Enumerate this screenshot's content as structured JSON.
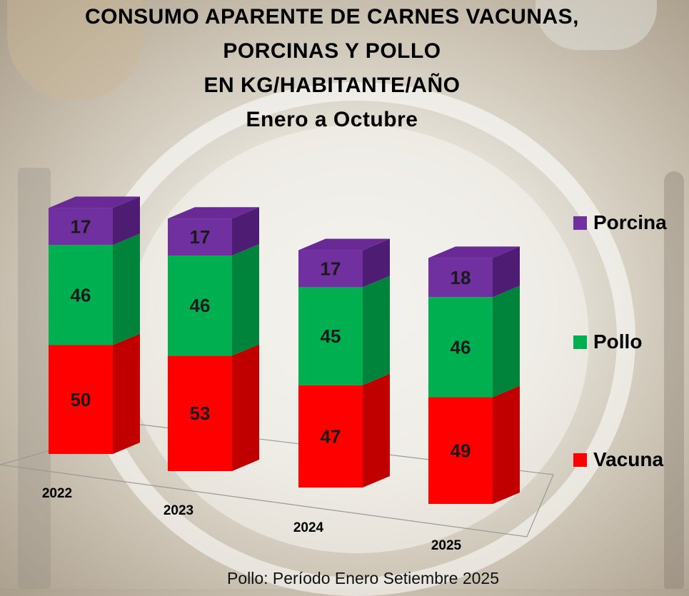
{
  "title": {
    "line1": "CONSUMO APARENTE DE CARNES VACUNAS,",
    "line2": "PORCINAS Y POLLO",
    "line3": "EN KG/HABITANTE/AÑO",
    "line4": "Enero a Octubre"
  },
  "footnote": "Pollo: Período Enero  Setiembre  2025",
  "legend": [
    {
      "label": "Porcina",
      "color": "#7030a0"
    },
    {
      "label": "Pollo",
      "color": "#00b050"
    },
    {
      "label": "Vacuna",
      "color": "#ff0000"
    }
  ],
  "chart_data": {
    "type": "bar",
    "stacked": true,
    "style": "3d-column",
    "categories": [
      "2022",
      "2023",
      "2024",
      "2025"
    ],
    "series": [
      {
        "name": "Vacuna",
        "values": [
          50,
          53,
          47,
          49
        ],
        "color": "#ff0000"
      },
      {
        "name": "Pollo",
        "values": [
          46,
          46,
          45,
          46
        ],
        "color": "#00b050"
      },
      {
        "name": "Porcina",
        "values": [
          17,
          17,
          17,
          18
        ],
        "color": "#7030a0"
      }
    ],
    "legend_position": "right"
  }
}
